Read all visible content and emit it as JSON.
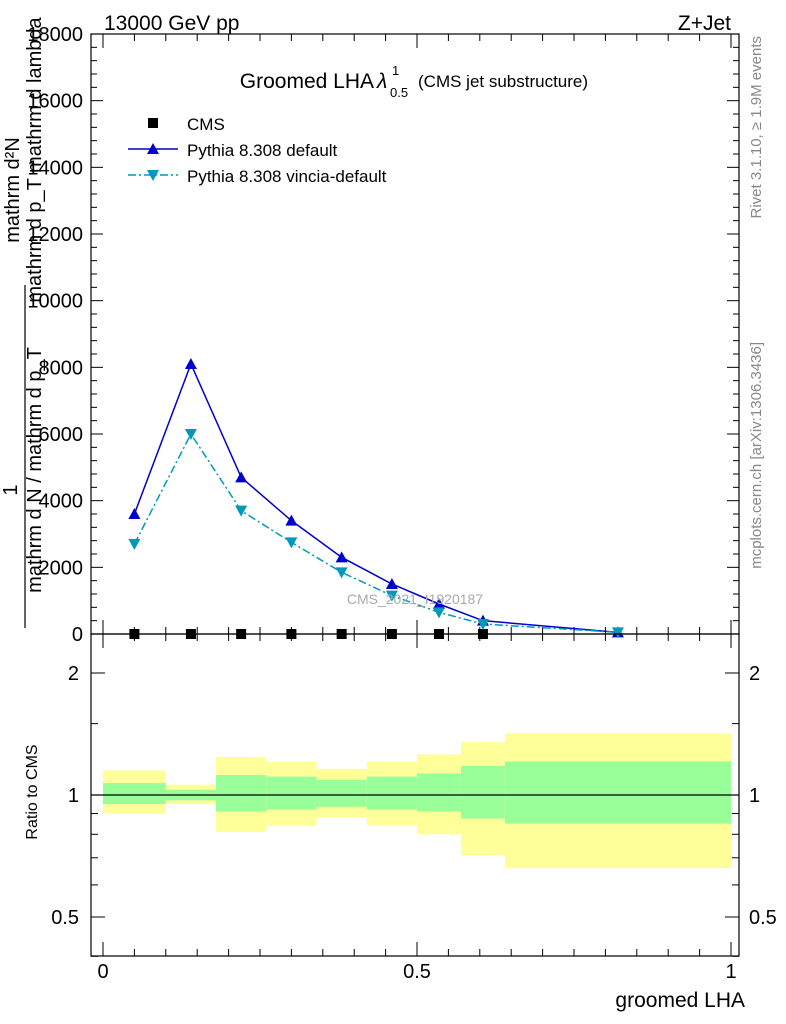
{
  "header": {
    "energy": "13000 GeV pp",
    "process": "Z+Jet"
  },
  "side": {
    "rivet": "Rivet 3.1.10, ≥ 1.9M events",
    "mcplots": "mcplots.cern.ch [arXiv:1306.3436]"
  },
  "chart_data": [
    {
      "type": "line",
      "title": "Groomed LHA",
      "title_symbol": "λ",
      "title_sup": "1",
      "title_sub": "0.5",
      "subtitle": "(CMS jet substructure)",
      "ylabel_lines": [
        "mathrm d²N",
        "mathrm d p_T mathrm d lambda"
      ],
      "ylabel_num": "1",
      "ylabel_den": "mathrm d N / mathrm d p_T",
      "ylim": [
        0,
        18000
      ],
      "yticks": [
        0,
        2000,
        4000,
        6000,
        8000,
        10000,
        12000,
        14000,
        16000,
        18000
      ],
      "ytick_labels": [
        "0",
        "2000",
        "4000",
        "6000",
        "8000",
        "10000",
        "12000",
        "14000",
        "16000",
        "18000"
      ],
      "xlim": [
        -0.02,
        1.02
      ],
      "watermark": "CMS_2021_I1920187",
      "legend": {
        "position": "top-left",
        "entries": [
          "CMS",
          "Pythia 8.308 default",
          "Pythia 8.308 vincia-default"
        ]
      },
      "series": [
        {
          "name": "CMS",
          "style": "markers",
          "color": "#000000",
          "x": [
            0.05,
            0.14,
            0.22,
            0.3,
            0.38,
            0.46,
            0.535,
            0.605
          ],
          "values": [
            0,
            0,
            0,
            0,
            0,
            0,
            0,
            0
          ]
        },
        {
          "name": "Pythia 8.308 default",
          "style": "solid-triangle-up",
          "color": "#0000cc",
          "x": [
            0.05,
            0.14,
            0.22,
            0.3,
            0.38,
            0.46,
            0.535,
            0.605,
            0.82
          ],
          "values": [
            3600,
            8100,
            4700,
            3400,
            2300,
            1500,
            900,
            400,
            50
          ]
        },
        {
          "name": "Pythia 8.308 vincia-default",
          "style": "dashdot-triangle-down",
          "color": "#0099bb",
          "x": [
            0.05,
            0.14,
            0.22,
            0.3,
            0.38,
            0.46,
            0.535,
            0.605,
            0.82
          ],
          "values": [
            2700,
            6000,
            3700,
            2750,
            1850,
            1150,
            650,
            300,
            50
          ]
        }
      ]
    },
    {
      "type": "area",
      "ylabel": "Ratio to CMS",
      "xlabel": "groomed LHA",
      "scale": "log",
      "ylim": [
        0.4,
        2.3
      ],
      "yticks": [
        0.5,
        1,
        2
      ],
      "ytick_labels": [
        "0.5",
        "1",
        "2"
      ],
      "xlim": [
        -0.02,
        1.02
      ],
      "xticks": [
        0,
        0.5,
        1
      ],
      "xtick_labels": [
        "0",
        "0.5",
        "1"
      ],
      "reference": 1,
      "band_colors": {
        "inner": "#99ff99",
        "outer": "#ffff99"
      },
      "bins": [
        {
          "lo": 0.0,
          "hi": 0.1,
          "inner": [
            0.95,
            1.07
          ],
          "outer": [
            0.9,
            1.15
          ]
        },
        {
          "lo": 0.1,
          "hi": 0.18,
          "inner": [
            0.97,
            1.03
          ],
          "outer": [
            0.95,
            1.06
          ]
        },
        {
          "lo": 0.18,
          "hi": 0.26,
          "inner": [
            0.91,
            1.12
          ],
          "outer": [
            0.81,
            1.24
          ]
        },
        {
          "lo": 0.26,
          "hi": 0.34,
          "inner": [
            0.92,
            1.11
          ],
          "outer": [
            0.84,
            1.21
          ]
        },
        {
          "lo": 0.34,
          "hi": 0.42,
          "inner": [
            0.935,
            1.09
          ],
          "outer": [
            0.88,
            1.16
          ]
        },
        {
          "lo": 0.42,
          "hi": 0.5,
          "inner": [
            0.92,
            1.11
          ],
          "outer": [
            0.84,
            1.21
          ]
        },
        {
          "lo": 0.5,
          "hi": 0.57,
          "inner": [
            0.91,
            1.13
          ],
          "outer": [
            0.8,
            1.26
          ]
        },
        {
          "lo": 0.57,
          "hi": 0.64,
          "inner": [
            0.875,
            1.18
          ],
          "outer": [
            0.71,
            1.35
          ]
        },
        {
          "lo": 0.64,
          "hi": 1.0,
          "inner": [
            0.85,
            1.21
          ],
          "outer": [
            0.66,
            1.42
          ]
        }
      ]
    }
  ]
}
